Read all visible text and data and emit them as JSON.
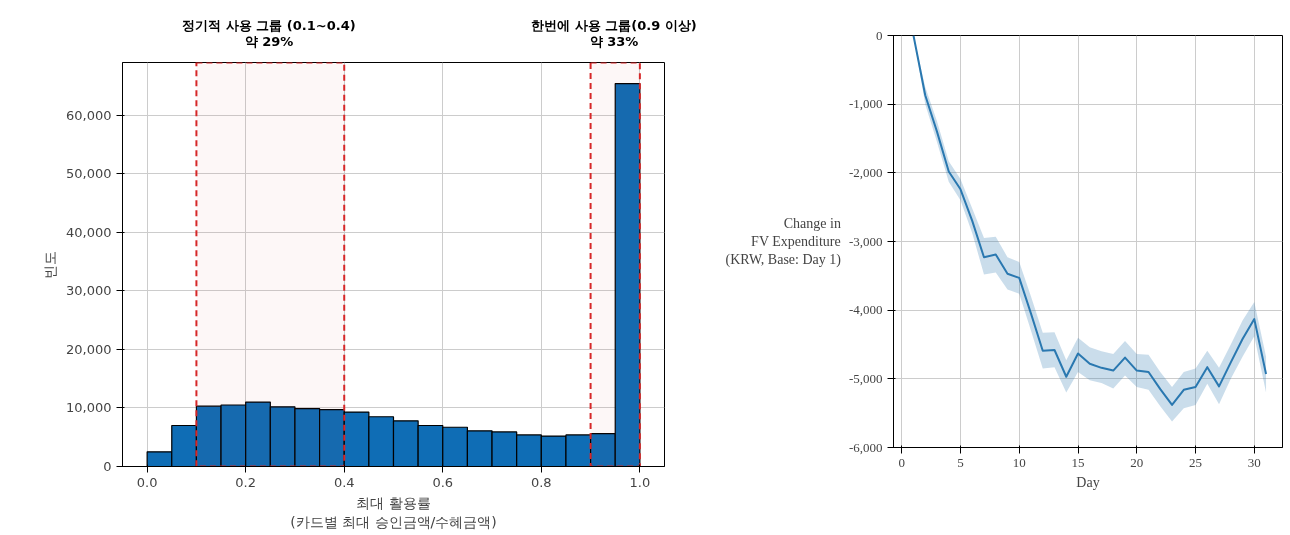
{
  "chart_data": [
    {
      "type": "histogram",
      "xlabel": "최대 활용률\n(카드별 최대 승인금액/수혜금액)",
      "ylabel": "빈도",
      "bins": [
        0,
        0.05,
        0.1,
        0.15,
        0.2,
        0.25,
        0.3,
        0.35,
        0.4,
        0.45,
        0.5,
        0.55,
        0.6,
        0.65,
        0.7,
        0.75,
        0.8,
        0.85,
        0.9,
        0.95,
        1.0
      ],
      "values": [
        2500,
        7000,
        10300,
        10500,
        11000,
        10200,
        9900,
        9700,
        9300,
        8500,
        7800,
        7000,
        6700,
        6100,
        5900,
        5400,
        5200,
        5400,
        5600,
        65400
      ],
      "color": "#0f6db5",
      "xlim": [
        -0.05,
        1.05
      ],
      "xticks": [
        {
          "value": 0,
          "label": "0.0"
        },
        0.2,
        0.4,
        0.6,
        0.8,
        {
          "value": 1,
          "label": "1.0"
        }
      ],
      "ylim": [
        0,
        69000
      ],
      "yticks": [
        0,
        {
          "value": 10000,
          "label": "10,000"
        },
        {
          "value": 20000,
          "label": "20,000"
        },
        {
          "value": 30000,
          "label": "30,000"
        },
        {
          "value": 40000,
          "label": "40,000"
        },
        {
          "value": 50000,
          "label": "50,000"
        },
        {
          "value": 60000,
          "label": "60,000"
        }
      ],
      "grid": true,
      "bands": [
        {
          "axis": "x",
          "from": 0.1,
          "to": 0.4,
          "label": "정기적 사용 그룹 (0.1~0.4)\n약 29%",
          "color": "#d62728"
        },
        {
          "axis": "x",
          "from": 0.9,
          "to": 1.0,
          "label": "한번에 사용 그룹(0.9 이상)\n약 33%",
          "color": "#d62728"
        }
      ]
    },
    {
      "type": "line",
      "xlabel": "Day",
      "ylabel": "Change in\nFV Expenditure\n(KRW, Base: Day 1)",
      "x": [
        1,
        2,
        3,
        4,
        5,
        6,
        7,
        8,
        9,
        10,
        11,
        12,
        13,
        14,
        15,
        16,
        17,
        18,
        19,
        20,
        21,
        22,
        23,
        24,
        25,
        26,
        27,
        28,
        29,
        30,
        31
      ],
      "series": [
        {
          "color": "#2a78b0",
          "values": [
            0,
            -870,
            -1400,
            -1980,
            -2240,
            -2700,
            -3230,
            -3190,
            -3470,
            -3530,
            -4050,
            -4590,
            -4580,
            -4970,
            -4630,
            -4780,
            -4840,
            -4880,
            -4690,
            -4880,
            -4900,
            -5150,
            -5380,
            -5160,
            -5120,
            -4830,
            -5110,
            -4760,
            -4420,
            -4130,
            -4930
          ],
          "lower": [
            0,
            -1000,
            -1550,
            -2130,
            -2400,
            -2880,
            -3480,
            -3450,
            -3700,
            -3760,
            -4300,
            -4850,
            -4830,
            -5200,
            -4900,
            -5020,
            -5060,
            -5140,
            -4950,
            -5120,
            -5160,
            -5400,
            -5620,
            -5430,
            -5380,
            -5070,
            -5370,
            -5000,
            -4680,
            -4380,
            -5200
          ],
          "upper": [
            0,
            -750,
            -1250,
            -1830,
            -2090,
            -2520,
            -2950,
            -2930,
            -3230,
            -3300,
            -3800,
            -4330,
            -4320,
            -4730,
            -4400,
            -4540,
            -4600,
            -4640,
            -4450,
            -4640,
            -4650,
            -4900,
            -5120,
            -4900,
            -4850,
            -4590,
            -4840,
            -4500,
            -4150,
            -3880,
            -4680
          ]
        }
      ],
      "marker": "none",
      "line_style": "solid",
      "xlim": [
        -0.7,
        32.4
      ],
      "xticks": [
        0,
        5,
        10,
        15,
        20,
        25,
        30
      ],
      "ylim": [
        -6000,
        0
      ],
      "yticks": [
        {
          "value": -6000,
          "label": "-6,000"
        },
        {
          "value": -5000,
          "label": "-5,000"
        },
        {
          "value": -4000,
          "label": "-4,000"
        },
        {
          "value": -3000,
          "label": "-3,000"
        },
        {
          "value": -2000,
          "label": "-2,000"
        },
        {
          "value": -1000,
          "label": "-1,000"
        },
        0
      ],
      "grid": true
    }
  ]
}
